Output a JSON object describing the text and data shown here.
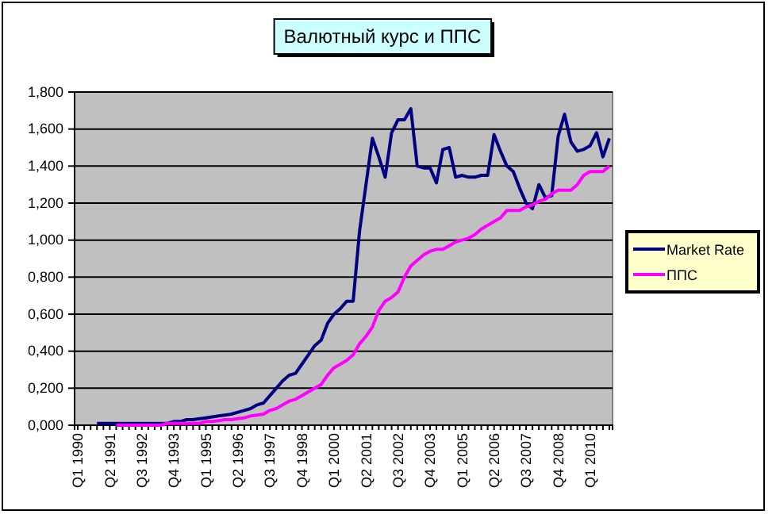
{
  "chart_data": {
    "type": "line",
    "title": "Валютный курс и ППС",
    "categories": [
      "Q1 1990",
      null,
      null,
      null,
      null,
      "Q2 1991",
      null,
      null,
      null,
      null,
      "Q3 1992",
      null,
      null,
      null,
      null,
      "Q4 1993",
      null,
      null,
      null,
      null,
      "Q1 1995",
      null,
      null,
      null,
      null,
      "Q2 1996",
      null,
      null,
      null,
      null,
      "Q3 1997",
      null,
      null,
      null,
      null,
      "Q4 1998",
      null,
      null,
      null,
      null,
      "Q1 2000",
      null,
      null,
      null,
      null,
      "Q2 2001",
      null,
      null,
      null,
      null,
      "Q3 2002",
      null,
      null,
      null,
      null,
      "Q4 2003",
      null,
      null,
      null,
      null,
      "Q1 2005",
      null,
      null,
      null,
      null,
      "Q2 2006",
      null,
      null,
      null,
      null,
      "Q3 2007",
      null,
      null,
      null,
      null,
      "Q4 2008",
      null,
      null,
      null,
      null,
      "Q1 2010",
      null,
      null,
      null
    ],
    "series": [
      {
        "name": "Market Rate",
        "color": "#000080",
        "values": [
          null,
          null,
          null,
          0.01,
          0.01,
          0.01,
          0.01,
          0.01,
          0.01,
          0.01,
          0.01,
          0.01,
          0.01,
          0.01,
          0.01,
          0.02,
          0.02,
          0.03,
          0.03,
          0.035,
          0.04,
          0.045,
          0.05,
          0.055,
          0.06,
          0.07,
          0.08,
          0.09,
          0.11,
          0.12,
          0.16,
          0.2,
          0.24,
          0.27,
          0.28,
          0.33,
          0.38,
          0.43,
          0.46,
          0.55,
          0.6,
          0.63,
          0.67,
          0.67,
          1.05,
          1.3,
          1.55,
          1.45,
          1.34,
          1.58,
          1.65,
          1.65,
          1.71,
          1.4,
          1.39,
          1.39,
          1.31,
          1.49,
          1.5,
          1.34,
          1.35,
          1.34,
          1.34,
          1.35,
          1.35,
          1.57,
          1.48,
          1.4,
          1.37,
          1.28,
          1.2,
          1.17,
          1.3,
          1.23,
          1.24,
          1.56,
          1.68,
          1.53,
          1.48,
          1.49,
          1.51,
          1.58,
          1.45,
          1.55
        ]
      },
      {
        "name": "ППС",
        "color": "#ff00ff",
        "values": [
          null,
          null,
          null,
          null,
          null,
          null,
          0.0,
          0.0,
          0.0,
          0.0,
          0.0,
          0.0,
          0.0,
          0.0,
          0.01,
          0.01,
          0.01,
          0.01,
          0.01,
          0.01,
          0.02,
          0.02,
          0.025,
          0.03,
          0.03,
          0.035,
          0.04,
          0.05,
          0.055,
          0.06,
          0.08,
          0.09,
          0.11,
          0.13,
          0.14,
          0.16,
          0.18,
          0.2,
          0.22,
          0.27,
          0.31,
          0.33,
          0.35,
          0.38,
          0.44,
          0.48,
          0.53,
          0.62,
          0.67,
          0.69,
          0.72,
          0.8,
          0.86,
          0.89,
          0.92,
          0.94,
          0.95,
          0.95,
          0.97,
          0.99,
          1.0,
          1.01,
          1.03,
          1.06,
          1.08,
          1.1,
          1.12,
          1.16,
          1.16,
          1.16,
          1.18,
          1.19,
          1.21,
          1.22,
          1.25,
          1.27,
          1.27,
          1.27,
          1.3,
          1.35,
          1.37,
          1.37,
          1.37,
          1.4
        ]
      }
    ],
    "ylim": [
      0,
      1.8
    ],
    "yticks": [
      {
        "value": 0,
        "label": "0,000"
      },
      {
        "value": 0.2,
        "label": "0,200"
      },
      {
        "value": 0.4,
        "label": "0,400"
      },
      {
        "value": 0.6,
        "label": "0,600"
      },
      {
        "value": 0.8,
        "label": "0,800"
      },
      {
        "value": 1,
        "label": "1,000"
      },
      {
        "value": 1.2,
        "label": "1,200"
      },
      {
        "value": 1.4,
        "label": "1,400"
      },
      {
        "value": 1.6,
        "label": "1,600"
      },
      {
        "value": 1.8,
        "label": "1,800"
      }
    ],
    "grid": "y",
    "legend": "right",
    "marker": "none",
    "line_style": "solid"
  }
}
